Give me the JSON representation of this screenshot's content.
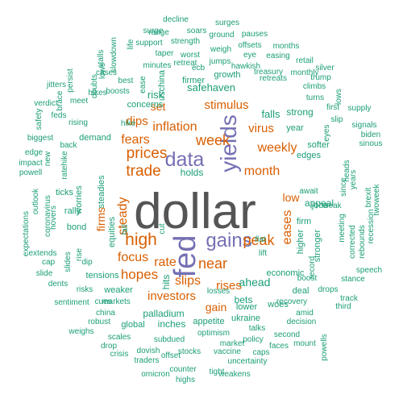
{
  "palette": {
    "dark": "#555555",
    "purple": "#7570b3",
    "orange": "#d95f02",
    "teal": "#1b9e77"
  },
  "words": [
    {
      "text": "dollar",
      "color": "dark"
    },
    {
      "text": "fed",
      "color": "purple"
    },
    {
      "text": "yields",
      "color": "purple"
    },
    {
      "text": "data",
      "color": "purple"
    },
    {
      "text": "gains",
      "color": "purple"
    },
    {
      "text": "prices",
      "color": "orange"
    },
    {
      "text": "trade",
      "color": "orange"
    },
    {
      "text": "high",
      "color": "orange"
    },
    {
      "text": "week",
      "color": "orange"
    },
    {
      "text": "weekly",
      "color": "orange"
    },
    {
      "text": "month",
      "color": "orange"
    },
    {
      "text": "inflation",
      "color": "orange"
    },
    {
      "text": "stimulus",
      "color": "orange"
    },
    {
      "text": "fears",
      "color": "orange"
    },
    {
      "text": "dips",
      "color": "orange"
    },
    {
      "text": "virus",
      "color": "orange"
    },
    {
      "text": "near",
      "color": "orange"
    },
    {
      "text": "peak",
      "color": "orange"
    },
    {
      "text": "hopes",
      "color": "orange"
    },
    {
      "text": "focus",
      "color": "orange"
    },
    {
      "text": "rate",
      "color": "orange"
    },
    {
      "text": "slips",
      "color": "orange"
    },
    {
      "text": "rises",
      "color": "orange"
    },
    {
      "text": "investors",
      "color": "orange"
    },
    {
      "text": "gain",
      "color": "orange"
    },
    {
      "text": "firms",
      "color": "orange"
    },
    {
      "text": "steady",
      "color": "orange"
    },
    {
      "text": "eases",
      "color": "orange"
    },
    {
      "text": "low",
      "color": "orange"
    },
    {
      "text": "set",
      "color": "orange"
    },
    {
      "text": "risk",
      "color": "teal"
    },
    {
      "text": "safehaven",
      "color": "teal"
    },
    {
      "text": "holds",
      "color": "teal"
    },
    {
      "text": "ahead",
      "color": "teal"
    },
    {
      "text": "bets",
      "color": "teal"
    },
    {
      "text": "palladium",
      "color": "teal"
    },
    {
      "text": "hits",
      "color": "teal"
    },
    {
      "text": "firm",
      "color": "teal"
    },
    {
      "text": "appeal",
      "color": "teal"
    },
    {
      "text": "falls",
      "color": "teal"
    },
    {
      "text": "strong",
      "color": "teal"
    },
    {
      "text": "uschina",
      "color": "teal"
    },
    {
      "text": "concerns",
      "color": "teal"
    },
    {
      "text": "growth",
      "color": "teal"
    },
    {
      "text": "firmer",
      "color": "teal"
    },
    {
      "text": "hike",
      "color": "teal"
    },
    {
      "text": "demand",
      "color": "teal"
    },
    {
      "text": "steadies",
      "color": "teal"
    },
    {
      "text": "equities",
      "color": "teal"
    },
    {
      "text": "tensions",
      "color": "teal"
    },
    {
      "text": "economic",
      "color": "teal"
    },
    {
      "text": "jobs",
      "color": "teal"
    },
    {
      "text": "edges",
      "color": "teal"
    },
    {
      "text": "softer",
      "color": "teal"
    },
    {
      "text": "year",
      "color": "teal"
    },
    {
      "text": "await",
      "color": "teal"
    },
    {
      "text": "higher",
      "color": "teal"
    },
    {
      "text": "stronger",
      "color": "teal"
    },
    {
      "text": "record",
      "color": "teal"
    },
    {
      "text": "deal",
      "color": "teal"
    },
    {
      "text": "inches",
      "color": "teal"
    },
    {
      "text": "global",
      "color": "teal"
    },
    {
      "text": "lower",
      "color": "teal"
    },
    {
      "text": "woes",
      "color": "teal"
    },
    {
      "text": "appetite",
      "color": "teal"
    },
    {
      "text": "ukraine",
      "color": "teal"
    },
    {
      "text": "recovery",
      "color": "teal"
    },
    {
      "text": "weaker",
      "color": "teal"
    },
    {
      "text": "rally",
      "color": "teal"
    },
    {
      "text": "bond",
      "color": "teal"
    },
    {
      "text": "worries",
      "color": "teal"
    },
    {
      "text": "ticks",
      "color": "teal"
    },
    {
      "text": "rise",
      "color": "teal"
    },
    {
      "text": "dip",
      "color": "teal"
    },
    {
      "text": "markets",
      "color": "teal"
    },
    {
      "text": "risks",
      "color": "teal"
    },
    {
      "text": "sentiment",
      "color": "teal"
    },
    {
      "text": "china",
      "color": "teal"
    },
    {
      "text": "robust",
      "color": "teal"
    },
    {
      "text": "scales",
      "color": "teal"
    },
    {
      "text": "dovish",
      "color": "teal"
    },
    {
      "text": "subdued",
      "color": "teal"
    },
    {
      "text": "stocks",
      "color": "teal"
    },
    {
      "text": "optimism",
      "color": "teal"
    },
    {
      "text": "talks",
      "color": "teal"
    },
    {
      "text": "policy",
      "color": "teal"
    },
    {
      "text": "second",
      "color": "teal"
    },
    {
      "text": "decision",
      "color": "teal"
    },
    {
      "text": "amid",
      "color": "teal"
    },
    {
      "text": "boost",
      "color": "teal"
    },
    {
      "text": "drops",
      "color": "teal"
    },
    {
      "text": "track",
      "color": "teal"
    },
    {
      "text": "third",
      "color": "teal"
    },
    {
      "text": "stance",
      "color": "teal"
    },
    {
      "text": "speech",
      "color": "teal"
    },
    {
      "text": "rebounds",
      "color": "teal"
    },
    {
      "text": "corrected",
      "color": "teal"
    },
    {
      "text": "recession",
      "color": "teal"
    },
    {
      "text": "twoweek",
      "color": "teal"
    },
    {
      "text": "brexit",
      "color": "teal"
    },
    {
      "text": "years",
      "color": "teal"
    },
    {
      "text": "since",
      "color": "teal"
    },
    {
      "text": "heads",
      "color": "teal"
    },
    {
      "text": "meeting",
      "color": "teal"
    },
    {
      "text": "weak",
      "color": "teal"
    },
    {
      "text": "eyes",
      "color": "teal"
    },
    {
      "text": "slip",
      "color": "teal"
    },
    {
      "text": "first",
      "color": "teal"
    },
    {
      "text": "turns",
      "color": "teal"
    },
    {
      "text": "climbs",
      "color": "teal"
    },
    {
      "text": "trump",
      "color": "teal"
    },
    {
      "text": "silver",
      "color": "teal"
    },
    {
      "text": "supply",
      "color": "teal"
    },
    {
      "text": "signals",
      "color": "teal"
    },
    {
      "text": "biden",
      "color": "teal"
    },
    {
      "text": "sinous",
      "color": "teal"
    },
    {
      "text": "lows",
      "color": "teal"
    },
    {
      "text": "retail",
      "color": "teal"
    },
    {
      "text": "monthly",
      "color": "teal"
    },
    {
      "text": "treasury",
      "color": "teal"
    },
    {
      "text": "retreats",
      "color": "teal"
    },
    {
      "text": "hawkish",
      "color": "teal"
    },
    {
      "text": "easing",
      "color": "teal"
    },
    {
      "text": "months",
      "color": "teal"
    },
    {
      "text": "pauses",
      "color": "teal"
    },
    {
      "text": "offsets",
      "color": "teal"
    },
    {
      "text": "eye",
      "color": "teal"
    },
    {
      "text": "weigh",
      "color": "teal"
    },
    {
      "text": "jumps",
      "color": "teal"
    },
    {
      "text": "ecb",
      "color": "teal"
    },
    {
      "text": "worst",
      "color": "teal"
    },
    {
      "text": "retreat",
      "color": "teal"
    },
    {
      "text": "minutes",
      "color": "teal"
    },
    {
      "text": "taper",
      "color": "teal"
    },
    {
      "text": "support",
      "color": "teal"
    },
    {
      "text": "strength",
      "color": "teal"
    },
    {
      "text": "ground",
      "color": "teal"
    },
    {
      "text": "soars",
      "color": "teal"
    },
    {
      "text": "surge",
      "color": "teal"
    },
    {
      "text": "surges",
      "color": "teal"
    },
    {
      "text": "decline",
      "color": "teal"
    },
    {
      "text": "range",
      "color": "teal"
    },
    {
      "text": "stalls",
      "color": "teal"
    },
    {
      "text": "slowdown",
      "color": "teal"
    },
    {
      "text": "life",
      "color": "teal"
    },
    {
      "text": "lows",
      "color": "teal"
    },
    {
      "text": "doubts",
      "color": "teal"
    },
    {
      "text": "hikes",
      "color": "teal"
    },
    {
      "text": "cases",
      "color": "teal"
    },
    {
      "text": "best",
      "color": "teal"
    },
    {
      "text": "ease",
      "color": "teal"
    },
    {
      "text": "boosts",
      "color": "teal"
    },
    {
      "text": "meet",
      "color": "teal"
    },
    {
      "text": "rising",
      "color": "teal"
    },
    {
      "text": "persist",
      "color": "teal"
    },
    {
      "text": "jitters",
      "color": "teal"
    },
    {
      "text": "brace",
      "color": "teal"
    },
    {
      "text": "safety",
      "color": "teal"
    },
    {
      "text": "verdict",
      "color": "teal"
    },
    {
      "text": "feds",
      "color": "teal"
    },
    {
      "text": "biggest",
      "color": "teal"
    },
    {
      "text": "back",
      "color": "teal"
    },
    {
      "text": "edge",
      "color": "teal"
    },
    {
      "text": "impact",
      "color": "teal"
    },
    {
      "text": "powell",
      "color": "teal"
    },
    {
      "text": "ratehike",
      "color": "teal"
    },
    {
      "text": "new",
      "color": "teal"
    },
    {
      "text": "outlook",
      "color": "teal"
    },
    {
      "text": "coronavirus",
      "color": "teal"
    },
    {
      "text": "hovers",
      "color": "teal"
    },
    {
      "text": "expectations",
      "color": "teal"
    },
    {
      "text": "extends",
      "color": "teal"
    },
    {
      "text": "cap",
      "color": "teal"
    },
    {
      "text": "slides",
      "color": "teal"
    },
    {
      "text": "slide",
      "color": "teal"
    },
    {
      "text": "dents",
      "color": "teal"
    },
    {
      "text": "cues",
      "color": "teal"
    },
    {
      "text": "weighs",
      "color": "teal"
    },
    {
      "text": "fall",
      "color": "teal"
    },
    {
      "text": "cut",
      "color": "teal"
    },
    {
      "text": "flat",
      "color": "teal"
    },
    {
      "text": "lift",
      "color": "teal"
    },
    {
      "text": "losses",
      "color": "teal"
    },
    {
      "text": "drop",
      "color": "teal"
    },
    {
      "text": "crisis",
      "color": "teal"
    },
    {
      "text": "offset",
      "color": "teal"
    },
    {
      "text": "traders",
      "color": "teal"
    },
    {
      "text": "counter",
      "color": "teal"
    },
    {
      "text": "omicron",
      "color": "teal"
    },
    {
      "text": "highs",
      "color": "teal"
    },
    {
      "text": "tight",
      "color": "teal"
    },
    {
      "text": "weakens",
      "color": "teal"
    },
    {
      "text": "uncertainty",
      "color": "teal"
    },
    {
      "text": "vaccine",
      "color": "teal"
    },
    {
      "text": "market",
      "color": "teal"
    },
    {
      "text": "caps",
      "color": "teal"
    },
    {
      "text": "faces",
      "color": "teal"
    },
    {
      "text": "mount",
      "color": "teal"
    },
    {
      "text": "powells",
      "color": "teal"
    }
  ]
}
